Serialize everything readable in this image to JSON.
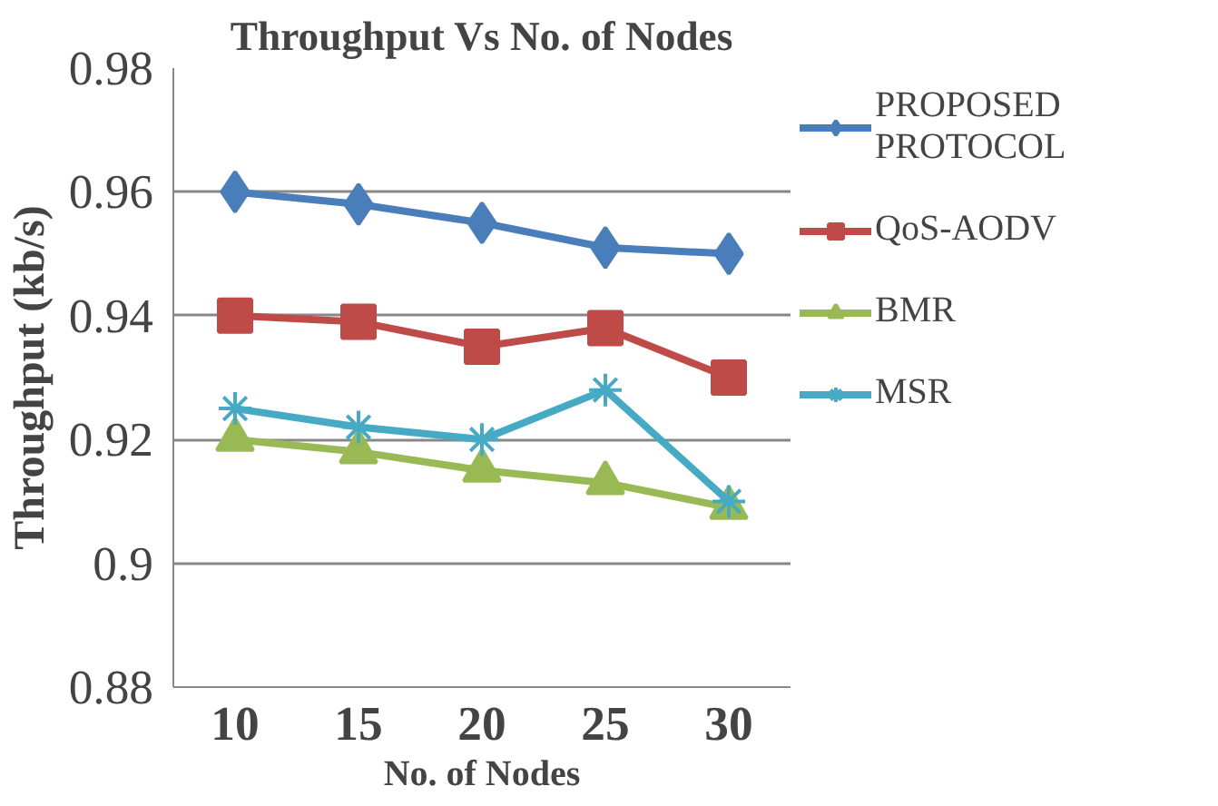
{
  "chart_data": {
    "type": "line",
    "title": "Throughput Vs No. of Nodes",
    "xlabel": "No. of Nodes",
    "ylabel": "Throughput (kb/s)",
    "categories": [
      "10",
      "15",
      "20",
      "25",
      "30"
    ],
    "ylim": [
      0.88,
      0.98
    ],
    "yticks": [
      {
        "value": 0.88,
        "label": "0.88"
      },
      {
        "value": 0.9,
        "label": "0.9"
      },
      {
        "value": 0.92,
        "label": "0.92"
      },
      {
        "value": 0.94,
        "label": "0.94"
      },
      {
        "value": 0.96,
        "label": "0.96"
      },
      {
        "value": 0.98,
        "label": "0.98"
      }
    ],
    "grid": "y",
    "legend": "right",
    "line_style": "solid",
    "series": [
      {
        "name": "PROPOSED PROTOCOL",
        "color": "#4a7ebb",
        "marker": "diamond",
        "values": [
          0.96,
          0.958,
          0.955,
          0.951,
          0.95
        ]
      },
      {
        "name": "QoS-AODV",
        "color": "#be4b48",
        "marker": "square",
        "values": [
          0.94,
          0.939,
          0.935,
          0.938,
          0.93
        ]
      },
      {
        "name": "BMR",
        "color": "#98b954",
        "marker": "triangle",
        "values": [
          0.92,
          0.918,
          0.915,
          0.913,
          0.909
        ]
      },
      {
        "name": "MSR",
        "color": "#46aac5",
        "marker": "cross",
        "values": [
          0.925,
          0.922,
          0.92,
          0.928,
          0.91
        ]
      }
    ]
  }
}
